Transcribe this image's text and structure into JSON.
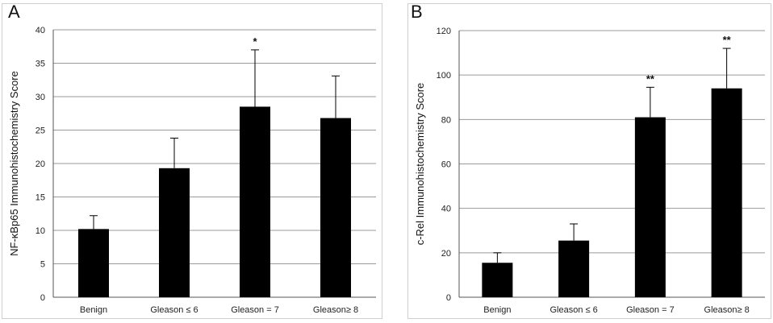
{
  "chart_data": [
    {
      "type": "bar",
      "panel_label": "A",
      "ylabel": "NF-κBp65 Immunohistochemistry Score",
      "categories": [
        "Benign",
        "Gleason ≤ 6",
        "Gleason = 7",
        "Gleason≥ 8"
      ],
      "values": [
        10.2,
        19.3,
        28.5,
        26.8
      ],
      "errors": [
        2.0,
        4.5,
        8.5,
        6.3
      ],
      "annotations": [
        "",
        "",
        "*",
        ""
      ],
      "ylim": [
        0,
        40
      ],
      "yticks": [
        0,
        5,
        10,
        15,
        20,
        25,
        30,
        35,
        40
      ],
      "grid": true,
      "bar_color": "#000000"
    },
    {
      "type": "bar",
      "panel_label": "B",
      "ylabel": "c-Rel Immunohistochemistry Score",
      "categories": [
        "Benign",
        "Gleason ≤ 6",
        "Gleason = 7",
        "Gleason≥ 8"
      ],
      "values": [
        15.5,
        25.5,
        81,
        94
      ],
      "errors": [
        4.5,
        7.5,
        13.5,
        18
      ],
      "annotations": [
        "",
        "",
        "**",
        "**"
      ],
      "ylim": [
        0,
        120
      ],
      "yticks": [
        0,
        20,
        40,
        60,
        80,
        100,
        120
      ],
      "grid": true,
      "bar_color": "#000000"
    }
  ]
}
